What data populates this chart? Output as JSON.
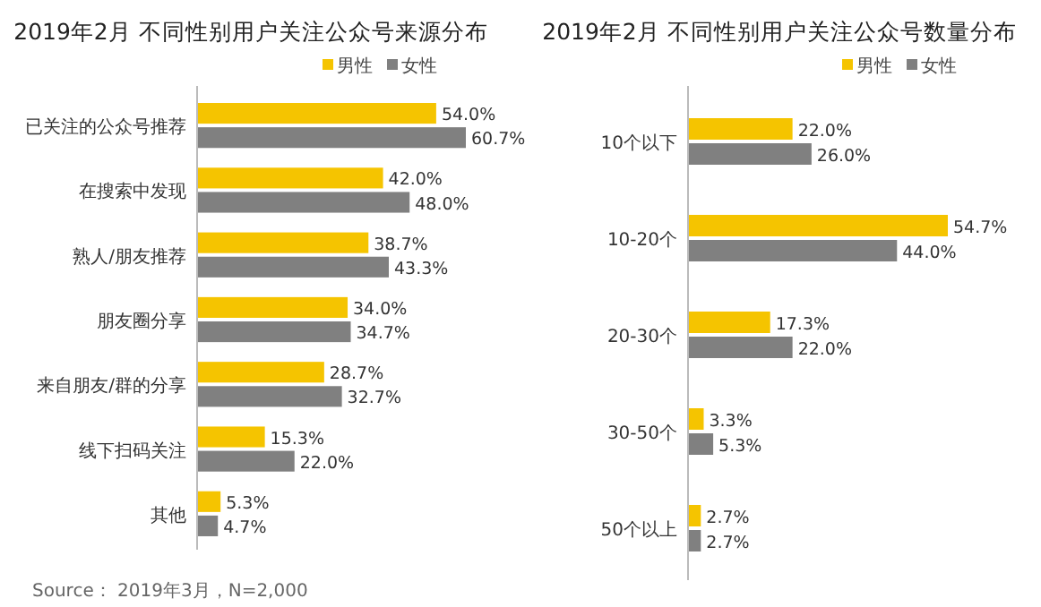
{
  "chart_data": [
    {
      "type": "bar",
      "orientation": "horizontal",
      "title": "2019年2月 不同性别用户关注公众号来源分布",
      "legend": "top right",
      "categories": [
        "已关注的公众号推荐",
        "在搜索中发现",
        "熟人/朋友推荐",
        "朋友圈分享",
        "来自朋友/群的分享",
        "线下扫码关注",
        "其他"
      ],
      "series": [
        {
          "name": "男性",
          "color": "#f5c400",
          "values": [
            54.0,
            42.0,
            38.7,
            34.0,
            28.7,
            15.3,
            5.3
          ],
          "value_labels": [
            "54.0%",
            "42.0%",
            "38.7%",
            "34.0%",
            "28.7%",
            "15.3%",
            "5.3%"
          ]
        },
        {
          "name": "女性",
          "color": "#808080",
          "values": [
            60.7,
            48.0,
            43.3,
            34.7,
            32.7,
            22.0,
            4.7
          ],
          "value_labels": [
            "60.7%",
            "48.0%",
            "43.3%",
            "34.7%",
            "32.7%",
            "22.0%",
            "4.7%"
          ]
        }
      ],
      "annotations": [
        "Source： 2019年3月，N=2,000"
      ]
    },
    {
      "type": "bar",
      "orientation": "horizontal",
      "title": "2019年2月 不同性别用户关注公众号数量分布",
      "legend": "top right",
      "categories": [
        "10个以下",
        "10-20个",
        "20-30个",
        "30-50个",
        "50个以上"
      ],
      "series": [
        {
          "name": "男性",
          "color": "#f5c400",
          "values": [
            22.0,
            54.7,
            17.3,
            3.3,
            2.7
          ],
          "value_labels": [
            "22.0%",
            "54.7%",
            "17.3%",
            "3.3%",
            "2.7%"
          ]
        },
        {
          "name": "女性",
          "color": "#808080",
          "values": [
            26.0,
            44.0,
            22.0,
            5.3,
            2.7
          ],
          "value_labels": [
            "26.0%",
            "44.0%",
            "22.0%",
            "5.3%",
            "2.7%"
          ]
        }
      ]
    }
  ]
}
